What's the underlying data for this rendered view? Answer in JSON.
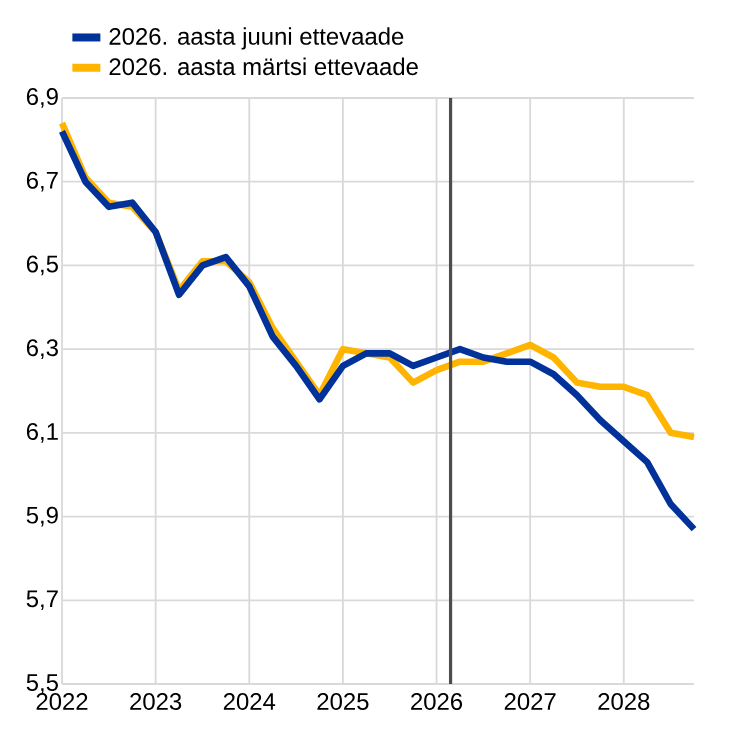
{
  "chart_data": {
    "type": "line",
    "x": [
      2022.0,
      2022.25,
      2022.5,
      2022.75,
      2023.0,
      2023.25,
      2023.5,
      2023.75,
      2024.0,
      2024.25,
      2024.5,
      2024.75,
      2025.0,
      2025.25,
      2025.5,
      2025.75,
      2026.0,
      2026.25,
      2026.5,
      2026.75,
      2027.0,
      2027.25,
      2027.5,
      2027.75,
      2028.0,
      2028.25,
      2028.5,
      2028.75
    ],
    "series": [
      {
        "name": "2026. aasta märtsi ettevaade",
        "color": "#ffb400",
        "values": [
          6.84,
          6.71,
          6.65,
          6.64,
          6.58,
          6.44,
          6.51,
          6.51,
          6.46,
          6.35,
          6.27,
          6.19,
          6.3,
          6.29,
          6.28,
          6.22,
          6.25,
          6.27,
          6.27,
          6.29,
          6.31,
          6.28,
          6.22,
          6.21,
          6.21,
          6.19,
          6.1,
          6.09
        ]
      },
      {
        "name": "2026. aasta juuni ettevaade",
        "color": "#003299",
        "values": [
          6.82,
          6.7,
          6.64,
          6.65,
          6.58,
          6.43,
          6.5,
          6.52,
          6.45,
          6.33,
          6.26,
          6.18,
          6.26,
          6.29,
          6.29,
          6.26,
          6.28,
          6.3,
          6.28,
          6.27,
          6.27,
          6.24,
          6.19,
          6.13,
          6.08,
          6.03,
          5.93,
          5.87
        ]
      }
    ],
    "xlim": [
      2022,
      2028.75
    ],
    "xticks": [
      2022,
      2023,
      2024,
      2025,
      2026,
      2027,
      2028
    ],
    "ylim": [
      5.5,
      6.9
    ],
    "yticks": [
      {
        "value": 5.5,
        "label": "5,5"
      },
      {
        "value": 5.7,
        "label": "5,7"
      },
      {
        "value": 5.9,
        "label": "5,9"
      },
      {
        "value": 6.1,
        "label": "6,1"
      },
      {
        "value": 6.3,
        "label": "6,3"
      },
      {
        "value": 6.5,
        "label": "6,5"
      },
      {
        "value": 6.7,
        "label": "6,7"
      },
      {
        "value": 6.9,
        "label": "6,9"
      }
    ],
    "ref_lines": [
      {
        "axis": "x",
        "value": 2026.15,
        "color": "#4d4d4d"
      }
    ],
    "grid": true,
    "legend": "top left",
    "marker": "none",
    "line_style": "solid"
  }
}
